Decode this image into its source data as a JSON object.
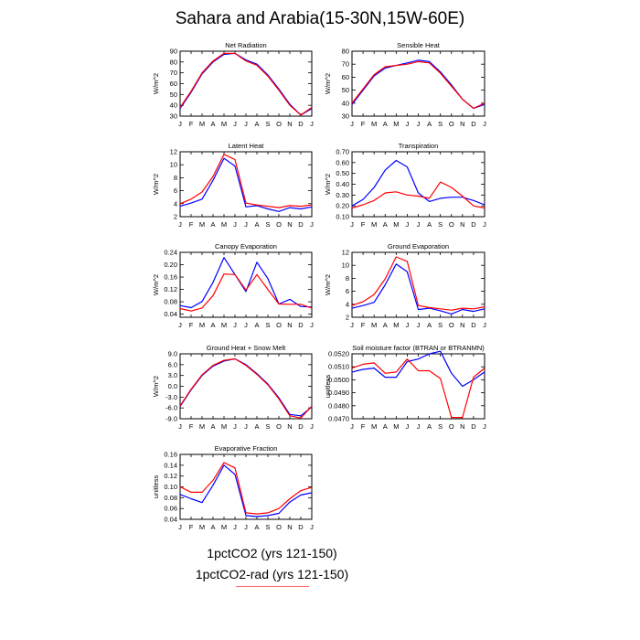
{
  "title": "Sahara and Arabia(15-30N,15W-60E)",
  "colors": {
    "series1": "#0000ff",
    "series2": "#ff0000",
    "axis": "#000000"
  },
  "legend": {
    "items": [
      {
        "label": "1pctCO2 (yrs 121-150)",
        "color": "#0000ff"
      },
      {
        "label": "1pctCO2-rad (yrs 121-150)",
        "color": "#ff0000"
      }
    ]
  },
  "chart_data": [
    {
      "type": "line",
      "title": "Net Radiation",
      "ylabel": "W/m^2",
      "ylim": [
        30,
        90
      ],
      "yticks": [
        30,
        40,
        50,
        60,
        70,
        80,
        90
      ],
      "yticklabels": [
        "30",
        "40",
        "50",
        "60",
        "70",
        "80",
        "90"
      ],
      "categories": [
        "J",
        "F",
        "M",
        "A",
        "M",
        "J",
        "J",
        "A",
        "S",
        "O",
        "N",
        "D",
        "J"
      ],
      "series": [
        {
          "values": [
            37,
            52,
            69,
            80,
            87,
            88,
            82,
            78,
            68,
            55,
            41,
            31,
            37
          ]
        },
        {
          "values": [
            38,
            53,
            70,
            81,
            88,
            88,
            81,
            77,
            67,
            54,
            40,
            31,
            38
          ]
        }
      ]
    },
    {
      "type": "line",
      "title": "Sensible Heat",
      "ylabel": "W/m^2",
      "ylim": [
        30,
        80
      ],
      "yticks": [
        30,
        40,
        50,
        60,
        70,
        80
      ],
      "yticklabels": [
        "30",
        "40",
        "50",
        "60",
        "70",
        "80"
      ],
      "categories": [
        "J",
        "F",
        "M",
        "A",
        "M",
        "J",
        "J",
        "A",
        "S",
        "O",
        "N",
        "D",
        "J"
      ],
      "series": [
        {
          "values": [
            39,
            50,
            61,
            67,
            69,
            71,
            73,
            72,
            64,
            54,
            43,
            36,
            39
          ]
        },
        {
          "values": [
            40,
            51,
            62,
            68,
            69,
            70,
            72,
            71,
            63,
            53,
            43,
            36,
            40
          ]
        }
      ]
    },
    {
      "type": "line",
      "title": "Latent Heat",
      "ylabel": "W/m^2",
      "ylim": [
        2,
        12
      ],
      "yticks": [
        2,
        4,
        6,
        8,
        10,
        12
      ],
      "yticklabels": [
        "2",
        "4",
        "6",
        "8",
        "10",
        "12"
      ],
      "categories": [
        "J",
        "F",
        "M",
        "A",
        "M",
        "J",
        "J",
        "A",
        "S",
        "O",
        "N",
        "D",
        "J"
      ],
      "series": [
        {
          "values": [
            3.6,
            4.1,
            4.7,
            7.6,
            11.0,
            9.8,
            3.5,
            3.7,
            3.2,
            2.8,
            3.4,
            3.2,
            3.5
          ]
        },
        {
          "values": [
            4.0,
            4.7,
            5.8,
            8.2,
            11.6,
            10.8,
            4.1,
            3.8,
            3.6,
            3.4,
            3.7,
            3.6,
            3.8
          ]
        }
      ]
    },
    {
      "type": "line",
      "title": "Transpiration",
      "ylabel": "W/m^2",
      "ylim": [
        0.1,
        0.7
      ],
      "yticks": [
        0.1,
        0.2,
        0.3,
        0.4,
        0.5,
        0.6,
        0.7
      ],
      "yticklabels": [
        "0.10",
        "0.20",
        "0.30",
        "0.40",
        "0.50",
        "0.60",
        "0.70"
      ],
      "categories": [
        "J",
        "F",
        "M",
        "A",
        "M",
        "J",
        "J",
        "A",
        "S",
        "O",
        "N",
        "D",
        "J"
      ],
      "series": [
        {
          "values": [
            0.2,
            0.26,
            0.37,
            0.53,
            0.62,
            0.56,
            0.32,
            0.24,
            0.27,
            0.28,
            0.28,
            0.25,
            0.21
          ]
        },
        {
          "values": [
            0.18,
            0.21,
            0.25,
            0.32,
            0.33,
            0.3,
            0.29,
            0.27,
            0.42,
            0.37,
            0.29,
            0.2,
            0.18
          ]
        }
      ]
    },
    {
      "type": "line",
      "title": "Canopy Evaporation",
      "ylabel": "W/m^2",
      "ylim": [
        0.03,
        0.24
      ],
      "yticks": [
        0.04,
        0.08,
        0.12,
        0.16,
        0.2,
        0.24
      ],
      "yticklabels": [
        "0.04",
        "0.08",
        "0.12",
        "0.16",
        "0.20",
        "0.24"
      ],
      "categories": [
        "J",
        "F",
        "M",
        "A",
        "M",
        "J",
        "J",
        "A",
        "S",
        "O",
        "N",
        "D",
        "J"
      ],
      "series": [
        {
          "values": [
            0.068,
            0.061,
            0.081,
            0.143,
            0.223,
            0.168,
            0.113,
            0.208,
            0.155,
            0.073,
            0.088,
            0.065,
            0.063
          ]
        },
        {
          "values": [
            0.058,
            0.05,
            0.06,
            0.1,
            0.17,
            0.168,
            0.118,
            0.168,
            0.12,
            0.073,
            0.072,
            0.072,
            0.06
          ]
        }
      ]
    },
    {
      "type": "line",
      "title": "Ground Evaporation",
      "ylabel": "W/m^2",
      "ylim": [
        2,
        12
      ],
      "yticks": [
        2,
        4,
        6,
        8,
        10,
        12
      ],
      "yticklabels": [
        "2",
        "4",
        "6",
        "8",
        "10",
        "12"
      ],
      "categories": [
        "J",
        "F",
        "M",
        "A",
        "M",
        "J",
        "J",
        "A",
        "S",
        "O",
        "N",
        "D",
        "J"
      ],
      "series": [
        {
          "values": [
            3.4,
            3.8,
            4.3,
            7.0,
            10.2,
            9.0,
            3.2,
            3.4,
            3.0,
            2.5,
            3.2,
            2.9,
            3.3
          ]
        },
        {
          "values": [
            3.8,
            4.4,
            5.5,
            7.9,
            11.3,
            10.6,
            3.8,
            3.5,
            3.3,
            3.1,
            3.4,
            3.3,
            3.6
          ]
        }
      ]
    },
    {
      "type": "line",
      "title": "Ground Heat + Snow Melt",
      "ylabel": "W/m^2",
      "ylim": [
        -9,
        9
      ],
      "yticks": [
        -9,
        -6,
        -3,
        0,
        3,
        6,
        9
      ],
      "yticklabels": [
        "-9.0",
        "-6.0",
        "-3.0",
        "0.0",
        "3.0",
        "6.0",
        "9.0"
      ],
      "categories": [
        "J",
        "F",
        "M",
        "A",
        "M",
        "J",
        "J",
        "A",
        "S",
        "O",
        "N",
        "D",
        "J"
      ],
      "series": [
        {
          "values": [
            -5.6,
            -1.0,
            3.0,
            5.6,
            7.0,
            7.6,
            6.0,
            3.5,
            0.6,
            -3.2,
            -7.8,
            -8.2,
            -5.7
          ]
        },
        {
          "values": [
            -5.4,
            -0.8,
            3.2,
            5.8,
            7.2,
            7.6,
            5.8,
            3.3,
            0.4,
            -3.5,
            -8.2,
            -8.8,
            -5.5
          ]
        }
      ]
    },
    {
      "type": "line",
      "title": "Soil moisture factor (BTRAN or BTRANMN)",
      "ylabel": "unitless",
      "ylim": [
        0.047,
        0.052
      ],
      "yticks": [
        0.047,
        0.048,
        0.049,
        0.05,
        0.051,
        0.052
      ],
      "yticklabels": [
        "0.0470",
        "0.0480",
        "0.0490",
        "0.0500",
        "0.0510",
        "0.0520"
      ],
      "categories": [
        "J",
        "F",
        "M",
        "A",
        "M",
        "J",
        "J",
        "A",
        "S",
        "O",
        "N",
        "D",
        "J"
      ],
      "series": [
        {
          "values": [
            0.0506,
            0.0508,
            0.0509,
            0.0502,
            0.0502,
            0.0514,
            0.0516,
            0.052,
            0.0522,
            0.0505,
            0.0495,
            0.05,
            0.0506
          ]
        },
        {
          "values": [
            0.0509,
            0.0512,
            0.0513,
            0.0505,
            0.0506,
            0.0516,
            0.0507,
            0.0507,
            0.0501,
            0.0471,
            0.0471,
            0.0502,
            0.0509
          ]
        }
      ]
    },
    {
      "type": "line",
      "title": "Evaporative Fraction",
      "ylabel": "unitless",
      "ylim": [
        0.04,
        0.16
      ],
      "yticks": [
        0.04,
        0.06,
        0.08,
        0.1,
        0.12,
        0.14,
        0.16
      ],
      "yticklabels": [
        "0.04",
        "0.06",
        "0.08",
        "0.10",
        "0.12",
        "0.14",
        "0.16"
      ],
      "categories": [
        "J",
        "F",
        "M",
        "A",
        "M",
        "J",
        "J",
        "A",
        "S",
        "O",
        "N",
        "D",
        "J"
      ],
      "series": [
        {
          "values": [
            0.086,
            0.078,
            0.071,
            0.103,
            0.14,
            0.123,
            0.047,
            0.045,
            0.047,
            0.051,
            0.072,
            0.085,
            0.089
          ]
        },
        {
          "values": [
            0.1,
            0.09,
            0.09,
            0.112,
            0.145,
            0.135,
            0.052,
            0.05,
            0.052,
            0.06,
            0.078,
            0.093,
            0.099
          ]
        }
      ]
    }
  ]
}
